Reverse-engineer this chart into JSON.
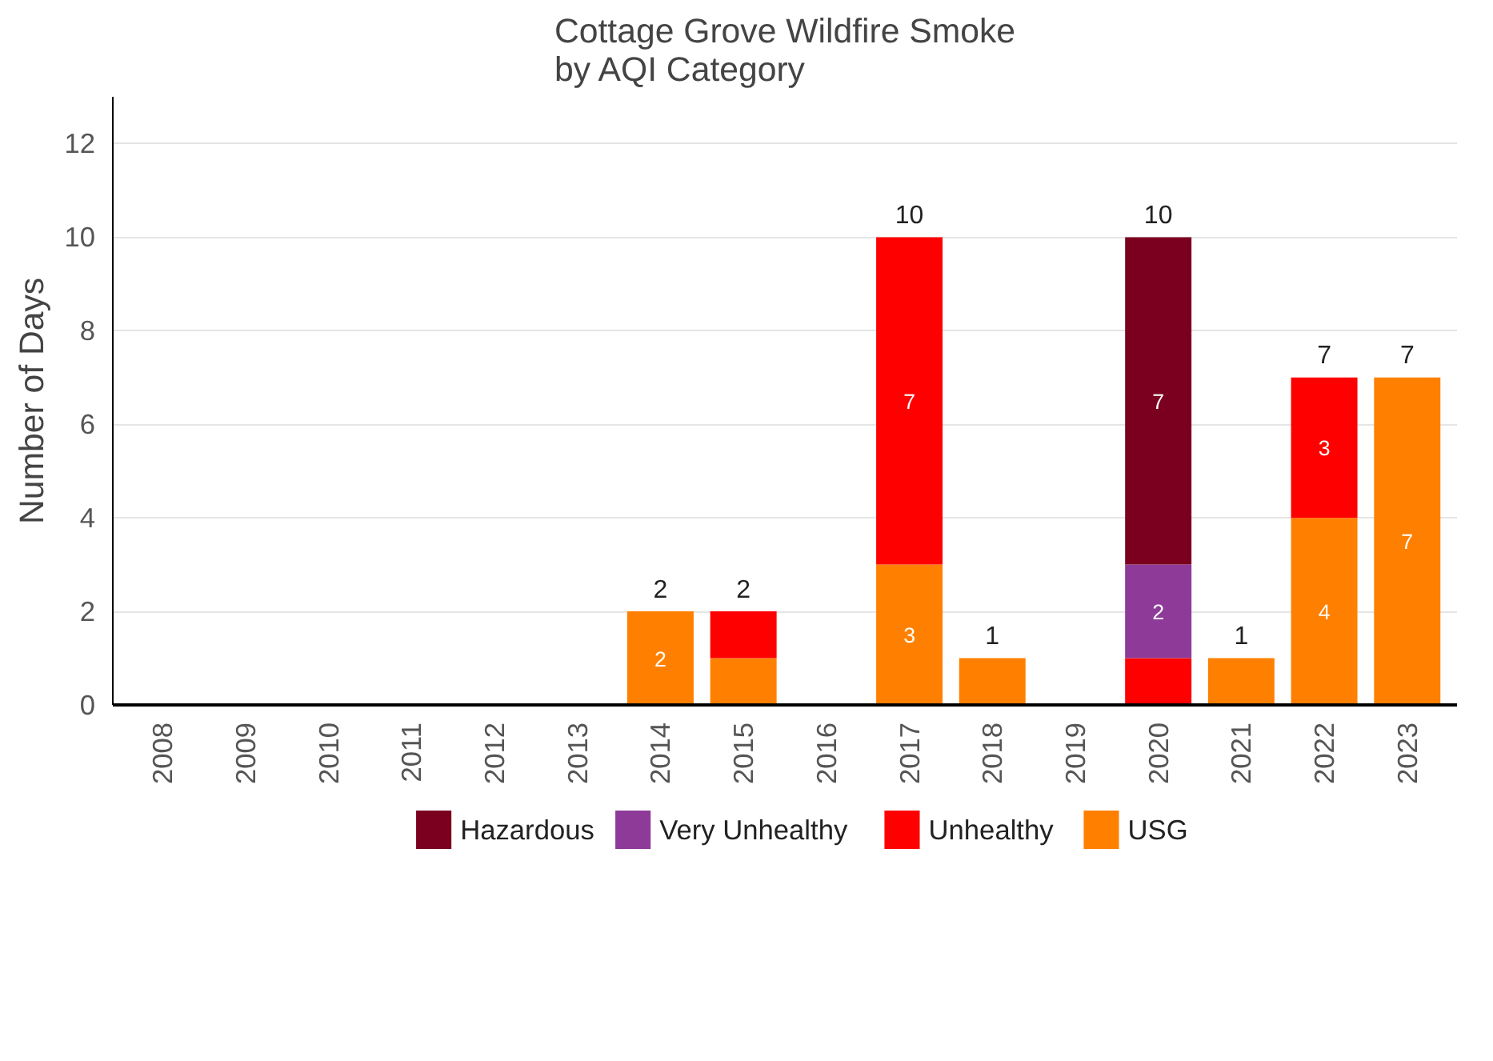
{
  "chart_data": {
    "type": "bar",
    "title": "Cottage Grove Wildfire Smoke\nby AQI Category",
    "ylabel": "Number of Days",
    "categories": [
      "2008",
      "2009",
      "2010",
      "2011",
      "2012",
      "2013",
      "2014",
      "2015",
      "2016",
      "2017",
      "2018",
      "2019",
      "2020",
      "2021",
      "2022",
      "2023"
    ],
    "stacked": true,
    "series": [
      {
        "name": "USG",
        "color": "#ff8000",
        "values": [
          0,
          0,
          0,
          0,
          0,
          0,
          2,
          1,
          0,
          3,
          1,
          0,
          0,
          1,
          4,
          7
        ],
        "value_labels": [
          null,
          null,
          null,
          null,
          null,
          null,
          "2",
          null,
          null,
          "3",
          null,
          null,
          null,
          null,
          "4",
          "7"
        ]
      },
      {
        "name": "Unhealthy",
        "color": "#ff0000",
        "values": [
          0,
          0,
          0,
          0,
          0,
          0,
          0,
          1,
          0,
          7,
          0,
          0,
          1,
          0,
          3,
          0
        ],
        "value_labels": [
          null,
          null,
          null,
          null,
          null,
          null,
          null,
          null,
          null,
          "7",
          null,
          null,
          null,
          null,
          "3",
          null
        ]
      },
      {
        "name": "Very Unhealthy",
        "color": "#8e3a99",
        "values": [
          0,
          0,
          0,
          0,
          0,
          0,
          0,
          0,
          0,
          0,
          0,
          0,
          2,
          0,
          0,
          0
        ],
        "value_labels": [
          null,
          null,
          null,
          null,
          null,
          null,
          null,
          null,
          null,
          null,
          null,
          null,
          "2",
          null,
          null,
          null
        ]
      },
      {
        "name": "Hazardous",
        "color": "#7b0020",
        "values": [
          0,
          0,
          0,
          0,
          0,
          0,
          0,
          0,
          0,
          0,
          0,
          0,
          7,
          0,
          0,
          0
        ],
        "value_labels": [
          null,
          null,
          null,
          null,
          null,
          null,
          null,
          null,
          null,
          null,
          null,
          null,
          "7",
          null,
          null,
          null
        ]
      }
    ],
    "totals": [
      null,
      null,
      null,
      null,
      null,
      null,
      "2",
      "2",
      null,
      "10",
      "1",
      null,
      "10",
      "1",
      "7",
      "7"
    ],
    "ylim": [
      0,
      13
    ],
    "yticks": [
      0,
      2,
      4,
      6,
      8,
      10,
      12
    ],
    "grid": "y",
    "legend": "bottom"
  }
}
